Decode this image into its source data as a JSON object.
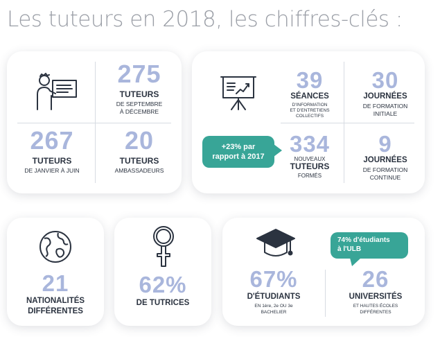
{
  "title": "Les tuteurs en 2018, les chiffres-clés :",
  "card1": {
    "stat1": {
      "num": "275",
      "label": "TUTEURS",
      "sub1": "DE SEPTEMBRE",
      "sub2": "À DÉCEMBRE"
    },
    "stat2": {
      "num": "267",
      "label": "TUTEURS",
      "sub1": "DE JANVIER À JUIN"
    },
    "stat3": {
      "num": "20",
      "label": "TUTEURS",
      "sub1": "AMBASSADEURS"
    }
  },
  "card2": {
    "stat1": {
      "num": "39",
      "label": "SÉANCES",
      "sub1": "D'INFORMATION",
      "sub2": "ET D'ENTRETIENS",
      "sub3": "COLLECTIFS"
    },
    "stat2": {
      "num": "30",
      "label": "JOURNÉES",
      "sub1": "DE FORMATION",
      "sub2": "INITIALE"
    },
    "stat3": {
      "num": "334",
      "pre": "NOUVEAUX",
      "label": "TUTEURS",
      "post": "FORMÉS"
    },
    "stat4": {
      "num": "9",
      "label": "JOURNÉES",
      "sub1": "DE FORMATION",
      "sub2": "CONTINUE"
    },
    "bubble": {
      "line1": "+23% par",
      "line2": "rapport à 2017"
    }
  },
  "card3": {
    "num": "21",
    "label1": "NATIONALITÉS",
    "label2": "DIFFÉRENTES"
  },
  "card4": {
    "num": "62%",
    "label1": "DE TUTRICES"
  },
  "card5": {
    "stat1": {
      "num": "67%",
      "label": "D'ÉTUDIANTS",
      "sub1": "EN 1ère, 2e OU 3e",
      "sub2": "BACHELIER"
    },
    "stat2": {
      "num": "26",
      "label": "UNIVERSITÉS",
      "sub1": "ET HAUTES ÉCOLES",
      "sub2": "DIFFÉRENTES"
    },
    "bubble": {
      "line1": "74% d'étudiants",
      "line2": "à l'ULB"
    }
  },
  "colors": {
    "number": "#a9b6dc",
    "bubble": "#38a597",
    "text": "#2b3340",
    "title": "#9a9ea6"
  },
  "icons": [
    "tutor-at-board-icon",
    "presentation-easel-icon",
    "globe-icon",
    "female-symbol-icon",
    "graduation-cap-icon"
  ]
}
